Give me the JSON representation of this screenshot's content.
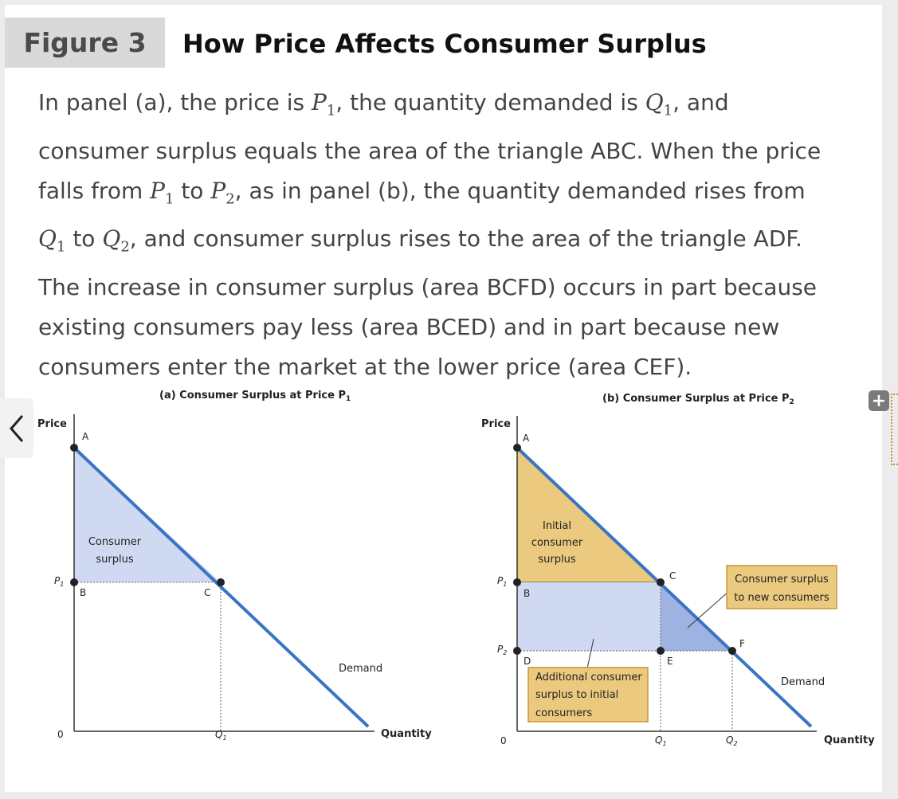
{
  "figure": {
    "number_label": "Figure 3",
    "title": "How Price Affects Consumer Surplus"
  },
  "caption": {
    "l1a": "In panel (a), the price is ",
    "l1b": ", the quantity demanded is ",
    "l1c": ", and",
    "l2": "consumer surplus equals the area of the triangle ABC. When the price",
    "l3a": "falls from ",
    "l3b": " to ",
    "l3c": ", as in panel (b), the quantity demanded rises from",
    "l4a": " to ",
    "l4b": ", and consumer surplus rises to the area of the triangle ADF.",
    "l5": "The increase in consumer surplus (area BCFD) occurs in part because",
    "l6": "existing consumers pay less (area BCED) and in part because new",
    "l7": "consumers enter the market at the lower price (area CEF).",
    "sym_P": "P",
    "sym_Q": "Q",
    "sub_1": "1",
    "sub_2": "2"
  },
  "panel_a": {
    "title": "(a) Consumer Surplus at Price P",
    "title_sub": "1",
    "y_axis_label": "Price",
    "x_axis_label": "Quantity",
    "origin_label": "0",
    "price_tick": "P",
    "price_tick_sub": "1",
    "qty_tick": "Q",
    "qty_tick_sub": "1",
    "point_A": "A",
    "point_B": "B",
    "point_C": "C",
    "region_label_1": "Consumer",
    "region_label_2": "surplus",
    "curve_label": "Demand"
  },
  "panel_b": {
    "title": "(b) Consumer Surplus at Price P",
    "title_sub": "2",
    "y_axis_label": "Price",
    "x_axis_label": "Quantity",
    "origin_label": "0",
    "price_tick_1": "P",
    "price_tick_1_sub": "1",
    "price_tick_2": "P",
    "price_tick_2_sub": "2",
    "qty_tick_1": "Q",
    "qty_tick_1_sub": "1",
    "qty_tick_2": "Q",
    "qty_tick_2_sub": "2",
    "point_A": "A",
    "point_B": "B",
    "point_C": "C",
    "point_D": "D",
    "point_E": "E",
    "point_F": "F",
    "initial_label_1": "Initial",
    "initial_label_2": "consumer",
    "initial_label_3": "surplus",
    "new_consumers_label_1": "Consumer surplus",
    "new_consumers_label_2": "to new consumers",
    "additional_label_1": "Additional consumer",
    "additional_label_2": "surplus to initial",
    "additional_label_3": "consumers",
    "curve_label": "Demand"
  },
  "colors": {
    "demand_line": "#3a74c4",
    "surplus_fill_light": "#cfdaf2",
    "surplus_fill_dark": "#9fb3e3",
    "initial_fill": "#ebc97f",
    "callout_border": "#c8963a"
  },
  "icons": {
    "nav": "chevron-left-icon",
    "expand": "plus-icon"
  }
}
